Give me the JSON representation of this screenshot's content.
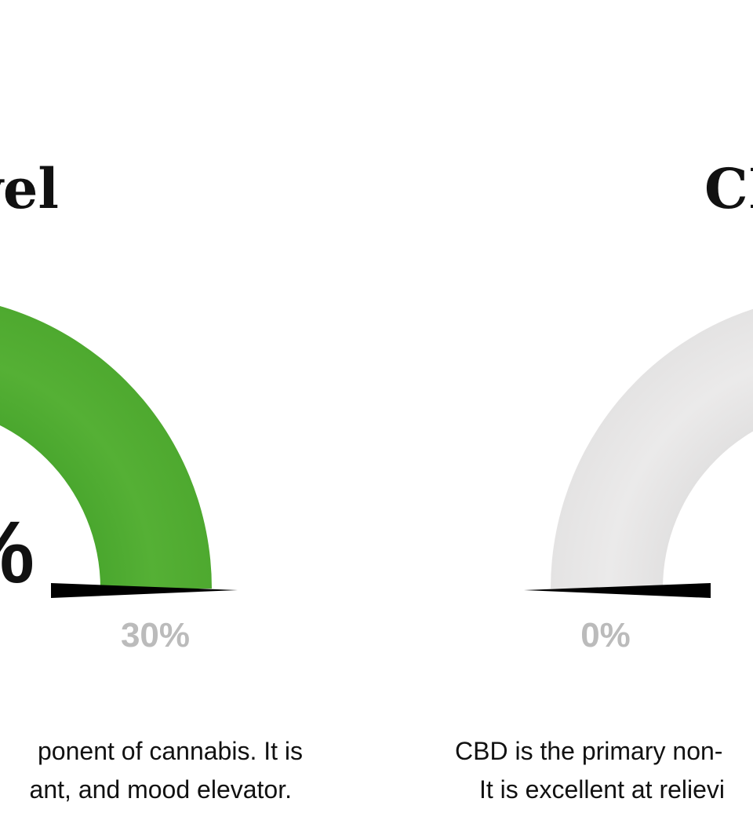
{
  "gauges": [
    {
      "title": "vel",
      "value_text": "%",
      "scale_label": "30%",
      "description": [
        "ponent of cannabis. It is",
        "ant, and mood elevator."
      ]
    },
    {
      "title": "CB",
      "scale_label": "0%",
      "description": [
        "CBD is the primary non-",
        "It is excellent at relievi"
      ]
    }
  ]
}
